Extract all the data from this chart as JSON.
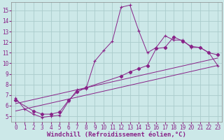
{
  "bg_color": "#cce8e8",
  "line_color": "#882288",
  "grid_color": "#aacccc",
  "xlabel": "Windchill (Refroidissement éolien,°C)",
  "xlabel_fontsize": 6.5,
  "tick_fontsize": 5.5,
  "xlim": [
    -0.5,
    23.5
  ],
  "ylim": [
    4.5,
    15.8
  ],
  "xticks": [
    0,
    1,
    2,
    3,
    4,
    5,
    6,
    7,
    8,
    9,
    10,
    11,
    12,
    13,
    14,
    15,
    16,
    17,
    18,
    19,
    20,
    21,
    22,
    23
  ],
  "yticks": [
    5,
    6,
    7,
    8,
    9,
    10,
    11,
    12,
    13,
    14,
    15
  ],
  "line1_x": [
    0,
    1,
    2,
    3,
    4,
    5,
    6,
    7,
    8,
    9,
    10,
    11,
    12,
    13,
    14,
    15,
    16,
    17,
    18,
    19,
    20,
    21,
    22,
    23
  ],
  "line1_y": [
    6.7,
    5.7,
    5.2,
    4.9,
    5.0,
    5.1,
    6.4,
    7.5,
    7.6,
    10.2,
    11.2,
    12.1,
    15.3,
    15.5,
    13.1,
    11.0,
    11.5,
    12.6,
    12.2,
    12.2,
    11.5,
    11.5,
    11.0,
    9.8
  ],
  "line1_marker_x": [
    0,
    1,
    2,
    3,
    4,
    5,
    6,
    7,
    8,
    9,
    10,
    11,
    12,
    13,
    14,
    15,
    16,
    17,
    18,
    19,
    20,
    21,
    22,
    23
  ],
  "line2_x": [
    0,
    2,
    3,
    4,
    5,
    6,
    7,
    8,
    12,
    13,
    14,
    15,
    16,
    17,
    18,
    19,
    20,
    21,
    22,
    23
  ],
  "line2_y": [
    6.5,
    5.5,
    5.2,
    5.2,
    5.4,
    6.5,
    7.3,
    7.7,
    8.8,
    9.2,
    9.5,
    9.8,
    11.4,
    11.5,
    12.5,
    12.1,
    11.6,
    11.5,
    11.0,
    10.8
  ],
  "line2_marker_x": [
    0,
    2,
    3,
    4,
    5,
    6,
    7,
    8,
    12,
    13,
    14,
    15,
    16,
    17,
    18,
    19,
    20,
    21,
    22,
    23
  ],
  "line3_x": [
    0,
    23
  ],
  "line3_y": [
    5.5,
    9.8
  ],
  "line4_x": [
    0,
    23
  ],
  "line4_y": [
    6.2,
    10.5
  ]
}
